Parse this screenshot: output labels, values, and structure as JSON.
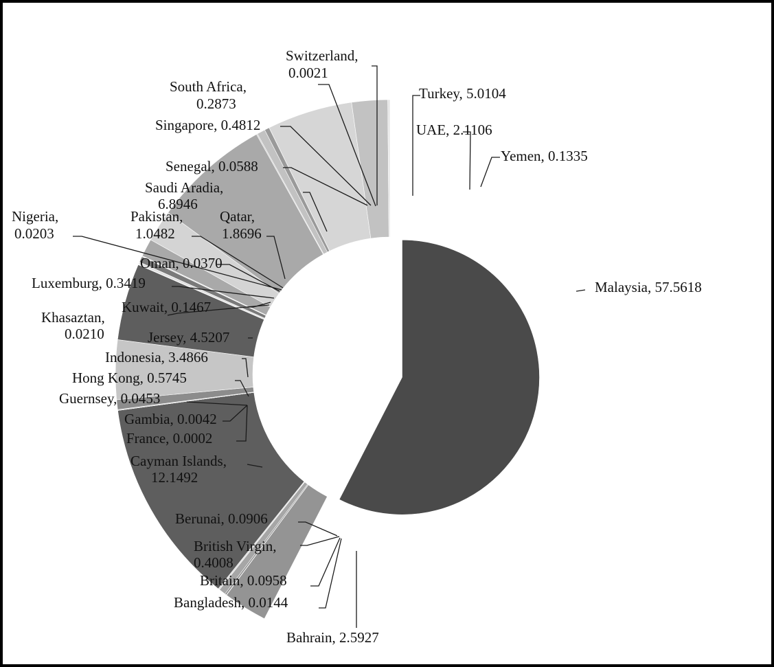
{
  "chart_data": {
    "type": "pie",
    "title": "",
    "legend": "none",
    "exploded": true,
    "slices": [
      {
        "label": "Malaysia",
        "value": 57.5618,
        "value_text": "57.5618",
        "color": "#4a4a4a"
      },
      {
        "label": "Bahrain",
        "value": 2.5927,
        "value_text": "2.5927",
        "color": "#949494"
      },
      {
        "label": "Bangladesh",
        "value": 0.0144,
        "value_text": "0.0144",
        "color": "#bcbcbc"
      },
      {
        "label": "Britain",
        "value": 0.0958,
        "value_text": "0.0958",
        "color": "#8a8a8a"
      },
      {
        "label": "British Virgin",
        "value": 0.4008,
        "value_text": "0.4008",
        "color": "#a6a6a6"
      },
      {
        "label": "Berunai",
        "value": 0.0906,
        "value_text": "0.0906",
        "color": "#dcdcdc"
      },
      {
        "label": "Cayman Islands",
        "value": 12.1492,
        "value_text": "12.1492",
        "color": "#5e5e5e"
      },
      {
        "label": "France",
        "value": 0.0002,
        "value_text": "0.0002",
        "color": "#cccccc"
      },
      {
        "label": "Gambia",
        "value": 0.0042,
        "value_text": "0.0042",
        "color": "#999999"
      },
      {
        "label": "Guernsey",
        "value": 0.0453,
        "value_text": "0.0453",
        "color": "#bdbdbd"
      },
      {
        "label": "Hong Kong",
        "value": 0.5745,
        "value_text": "0.5745",
        "color": "#8c8c8c"
      },
      {
        "label": "Indonesia",
        "value": 3.4866,
        "value_text": "3.4866",
        "color": "#c6c6c6"
      },
      {
        "label": "Jersey",
        "value": 4.5207,
        "value_text": "4.5207",
        "color": "#5e5e5e"
      },
      {
        "label": "Khasaztan",
        "value": 0.021,
        "value_text": "0.0210",
        "color": "#a8a8a8"
      },
      {
        "label": "Kuwait",
        "value": 0.1467,
        "value_text": "0.1467",
        "color": "#e0e0e0"
      },
      {
        "label": "Luxemburg",
        "value": 0.3419,
        "value_text": "0.3419",
        "color": "#7a7a7a"
      },
      {
        "label": "Oman",
        "value": 0.037,
        "value_text": "0.0370",
        "color": "#b4b4b4"
      },
      {
        "label": "Nigeria",
        "value": 0.0203,
        "value_text": "0.0203",
        "color": "#9c9c9c"
      },
      {
        "label": "Pakistan",
        "value": 1.0482,
        "value_text": "1.0482",
        "color": "#a9a9a9"
      },
      {
        "label": "Qatar",
        "value": 1.8696,
        "value_text": "1.8696",
        "color": "#d4d4d4"
      },
      {
        "label": "Saudi Aradia",
        "value": 6.8946,
        "value_text": "6.8946",
        "color": "#a9a9a9"
      },
      {
        "label": "Senegal",
        "value": 0.0588,
        "value_text": "0.0588",
        "color": "#c9c9c9"
      },
      {
        "label": "Singapore",
        "value": 0.4812,
        "value_text": "0.4812",
        "color": "#c2c2c2"
      },
      {
        "label": "South Africa",
        "value": 0.2873,
        "value_text": "0.2873",
        "color": "#9a9a9a"
      },
      {
        "label": "Switzerland",
        "value": 0.0021,
        "value_text": "0.0021",
        "color": "#9a9a9a"
      },
      {
        "label": "Turkey",
        "value": 5.0104,
        "value_text": "5.0104",
        "color": "#d6d6d6"
      },
      {
        "label": "UAE",
        "value": 2.1106,
        "value_text": "2.1106",
        "color": "#c2c2c2"
      },
      {
        "label": "Yemen",
        "value": 0.1335,
        "value_text": "0.1335",
        "color": "#e6e6e6"
      }
    ]
  }
}
